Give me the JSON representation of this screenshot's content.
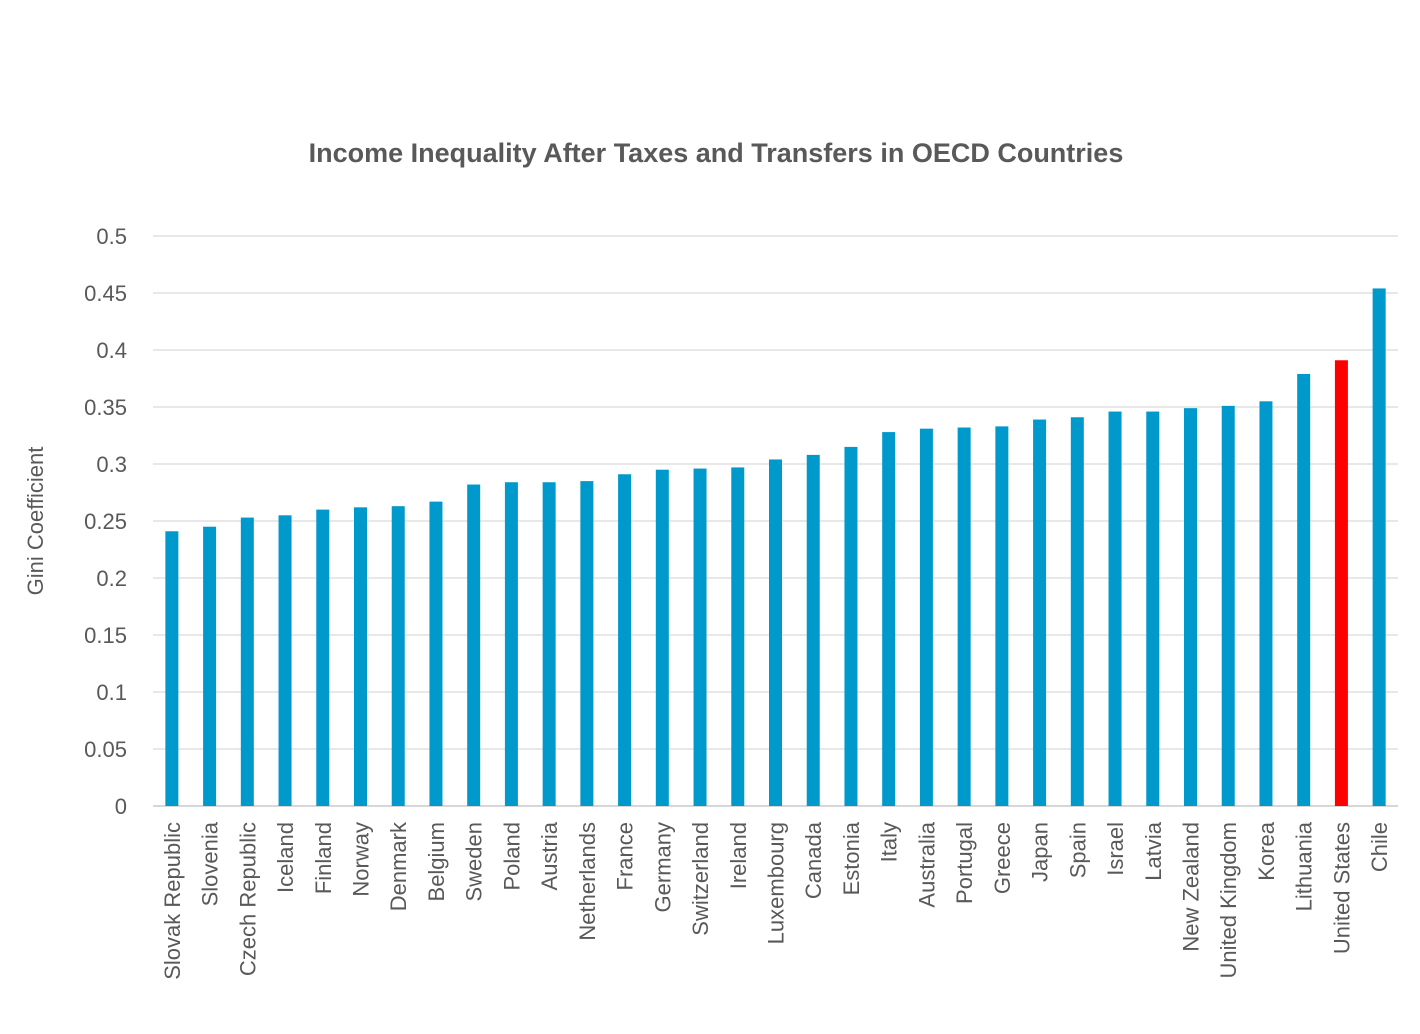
{
  "chart_data": {
    "type": "bar",
    "title": "Income Inequality After Taxes and Transfers in OECD Countries",
    "xlabel": "",
    "ylabel": "Gini Coefficient",
    "ylim": [
      0,
      0.5
    ],
    "yticks": [
      "0",
      "0.05",
      "0.1",
      "0.15",
      "0.2",
      "0.25",
      "0.3",
      "0.35",
      "0.4",
      "0.45",
      "0.5"
    ],
    "grid": true,
    "bar_color": "#0099CC",
    "highlight_color": "#FF0000",
    "highlight_category": "United States",
    "categories": [
      "Slovak Republic",
      "Slovenia",
      "Czech Republic",
      "Iceland",
      "Finland",
      "Norway",
      "Denmark",
      "Belgium",
      "Sweden",
      "Poland",
      "Austria",
      "Netherlands",
      "France",
      "Germany",
      "Switzerland",
      "Ireland",
      "Luxembourg",
      "Canada",
      "Estonia",
      "Italy",
      "Australia",
      "Portugal",
      "Greece",
      "Japan",
      "Spain",
      "Israel",
      "Latvia",
      "New Zealand",
      "United Kingdom",
      "Korea",
      "Lithuania",
      "United States",
      "Chile"
    ],
    "values": [
      0.241,
      0.245,
      0.253,
      0.255,
      0.26,
      0.262,
      0.263,
      0.267,
      0.282,
      0.284,
      0.284,
      0.285,
      0.291,
      0.295,
      0.296,
      0.297,
      0.304,
      0.308,
      0.315,
      0.328,
      0.331,
      0.332,
      0.333,
      0.339,
      0.341,
      0.346,
      0.346,
      0.349,
      0.351,
      0.355,
      0.379,
      0.391,
      0.454
    ]
  }
}
